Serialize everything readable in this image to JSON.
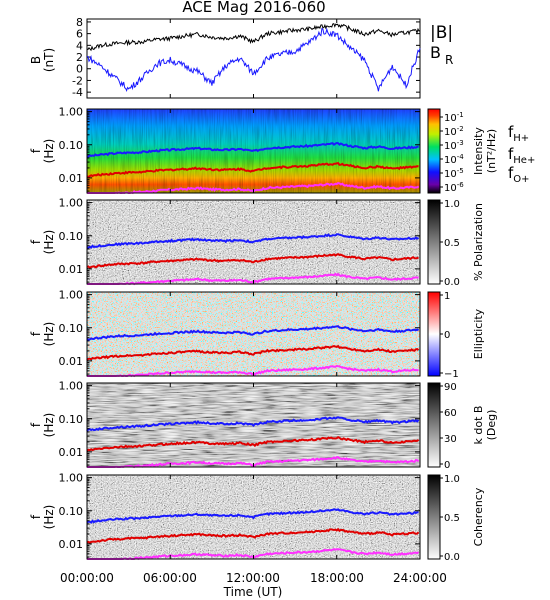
{
  "title": "ACE Mag 2016-060",
  "colors": {
    "B_total": "#000000",
    "B_R": "#1a1aff",
    "f_H": "#1a1aff",
    "f_He": "#e00000",
    "f_O": "#ff30ff",
    "label_H": "#2020c0",
    "label_He": "#c00000",
    "label_O": "#e020e0"
  },
  "x_axis": {
    "label": "Time (UT)",
    "ticks": [
      "00:00:00",
      "06:00:00",
      "12:00:00",
      "18:00:00",
      "24:00:00"
    ]
  },
  "chart_data": [
    {
      "type": "line",
      "panel": "magnetic-field",
      "ylabel": "B",
      "yunit": "(nT)",
      "ylim": [
        -5,
        8.5
      ],
      "yticks": [
        -4,
        -2,
        0,
        2,
        4,
        6,
        8
      ],
      "xlim_hours": [
        0,
        24
      ],
      "legend": [
        "|B|",
        "B",
        "R"
      ],
      "series": [
        {
          "name": "|B|",
          "x": [
            0,
            1,
            2,
            3,
            4,
            5,
            6,
            7,
            8,
            9,
            10,
            11,
            12,
            13,
            14,
            15,
            16,
            17,
            18,
            19,
            20,
            21,
            22,
            23,
            24
          ],
          "y": [
            3.2,
            4.0,
            4.3,
            4.5,
            4.6,
            5.0,
            5.2,
            5.6,
            5.9,
            5.4,
            5.2,
            5.6,
            4.6,
            6.0,
            6.3,
            6.6,
            6.8,
            7.2,
            7.6,
            6.8,
            5.9,
            6.5,
            5.8,
            6.2,
            6.5
          ]
        },
        {
          "name": "B_R",
          "x": [
            0,
            1,
            2,
            3,
            4,
            5,
            6,
            7,
            8,
            9,
            10,
            11,
            12,
            13,
            14,
            15,
            16,
            17,
            18,
            19,
            20,
            21,
            22,
            23,
            24
          ],
          "y": [
            2.0,
            0.5,
            -1.5,
            -3.5,
            -1.5,
            0.8,
            1.5,
            0.5,
            -0.5,
            -2.5,
            0.5,
            1.8,
            -0.8,
            1.8,
            2.5,
            3.0,
            4.5,
            6.5,
            5.8,
            3.5,
            1.5,
            -3.5,
            0.5,
            -2.8,
            3.5
          ]
        }
      ]
    },
    {
      "type": "heatmap",
      "panel": "intensity",
      "ylabel": "f",
      "yunit": "(Hz)",
      "ylim": [
        0.0035,
        1.2
      ],
      "yscale": "log",
      "yticks": [
        "1.00",
        "0.10",
        "0.01"
      ],
      "colorbar": {
        "label": "Intensity",
        "unit": "(nT²/Hz)",
        "ticks": [
          "10",
          "10",
          "10",
          "10",
          "10",
          "10"
        ],
        "exponents": [
          "-1",
          "-2",
          "-3",
          "-4",
          "-5",
          "-6"
        ],
        "colormap": "rainbow"
      },
      "legend": [
        "f",
        "H+",
        "f",
        "He+",
        "f",
        "O+"
      ]
    },
    {
      "type": "heatmap",
      "panel": "polarization",
      "ylabel": "f",
      "yunit": "(Hz)",
      "yscale": "log",
      "yticks": [
        "1.00",
        "0.10",
        "0.01"
      ],
      "colorbar": {
        "label": "% Polarization",
        "ticks": [
          "1.0",
          "0.5",
          "0.0"
        ],
        "colormap": "greys"
      }
    },
    {
      "type": "heatmap",
      "panel": "ellipticity",
      "ylabel": "f",
      "yunit": "(Hz)",
      "yscale": "log",
      "yticks": [
        "1.00",
        "0.10",
        "0.01"
      ],
      "colorbar": {
        "label": "Ellipticity",
        "ticks": [
          "1",
          "0",
          "−1"
        ],
        "colormap": "blue-white-red"
      }
    },
    {
      "type": "heatmap",
      "panel": "k-dot-b",
      "ylabel": "f",
      "yunit": "(Hz)",
      "yscale": "log",
      "yticks": [
        "1.00",
        "0.10",
        "0.01"
      ],
      "colorbar": {
        "label": "k dot B",
        "unit": "(Deg)",
        "ticks": [
          "90",
          "60",
          "30",
          "0"
        ],
        "colormap": "greys"
      }
    },
    {
      "type": "heatmap",
      "panel": "coherency",
      "ylabel": "f",
      "yunit": "(Hz)",
      "yscale": "log",
      "yticks": [
        "1.00",
        "0.10",
        "0.01"
      ],
      "colorbar": {
        "label": "Coherency",
        "ticks": [
          "1.0",
          "0.5",
          "0.0"
        ],
        "colormap": "greys"
      }
    }
  ],
  "gyro_frequencies": {
    "x_hours": [
      0,
      1,
      2,
      3,
      4,
      5,
      6,
      7,
      8,
      9,
      10,
      11,
      12,
      13,
      14,
      15,
      16,
      17,
      18,
      19,
      20,
      21,
      22,
      23,
      24
    ],
    "f_H_plus": [
      0.045,
      0.05,
      0.055,
      0.058,
      0.06,
      0.066,
      0.07,
      0.074,
      0.078,
      0.072,
      0.07,
      0.074,
      0.064,
      0.08,
      0.084,
      0.088,
      0.092,
      0.1,
      0.108,
      0.092,
      0.08,
      0.088,
      0.077,
      0.082,
      0.088
    ],
    "f_He_plus": [
      0.011,
      0.0125,
      0.0138,
      0.0145,
      0.015,
      0.0165,
      0.0175,
      0.0185,
      0.0195,
      0.018,
      0.0175,
      0.0185,
      0.016,
      0.02,
      0.021,
      0.022,
      0.023,
      0.025,
      0.027,
      0.023,
      0.02,
      0.022,
      0.019,
      0.0205,
      0.022
    ],
    "f_O_plus": [
      0.0028,
      0.0031,
      0.0034,
      0.0036,
      0.0038,
      0.0041,
      0.0044,
      0.0046,
      0.0049,
      0.0045,
      0.0044,
      0.0046,
      0.004,
      0.005,
      0.0052,
      0.0055,
      0.0057,
      0.0062,
      0.0067,
      0.0057,
      0.005,
      0.0055,
      0.0048,
      0.0051,
      0.0055
    ]
  }
}
